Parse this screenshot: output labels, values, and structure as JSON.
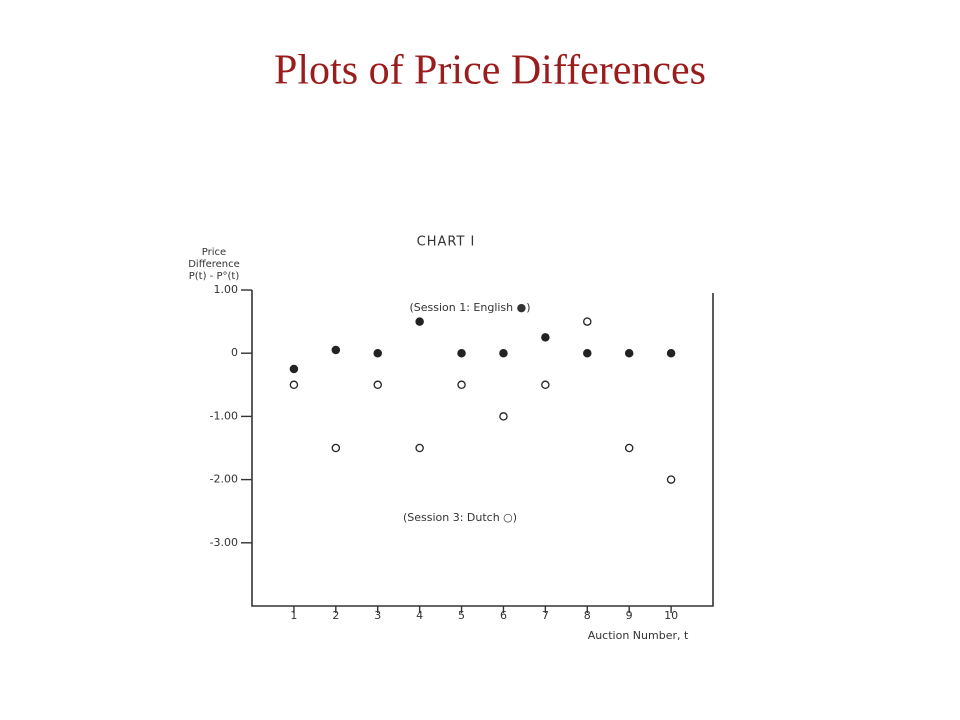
{
  "slide_title": "Plots of Price Differences",
  "chart_data": {
    "type": "scatter",
    "title": "CHART I",
    "ylabel_lines": [
      "Price",
      "Difference",
      "P(t) - P°(t)"
    ],
    "xlabel": "Auction Number, t",
    "x": [
      1,
      2,
      3,
      4,
      5,
      6,
      7,
      8,
      9,
      10
    ],
    "series": [
      {
        "name": "(Session 1: English ●)",
        "color": "#222222",
        "marker": "filled",
        "values": [
          -0.25,
          0.05,
          0,
          0.5,
          0,
          0,
          0.25,
          0,
          0,
          0
        ]
      },
      {
        "name": "(Session 3: Dutch ○)",
        "color": "#222222",
        "marker": "open",
        "values": [
          -0.5,
          -1.5,
          -0.5,
          -1.5,
          -0.5,
          -1.0,
          -0.5,
          0.5,
          -1.5,
          -2.0
        ]
      }
    ],
    "xlim": [
      0,
      11
    ],
    "ylim": [
      -4,
      1
    ],
    "xticks": [
      1,
      2,
      3,
      4,
      5,
      6,
      7,
      8,
      9,
      10
    ],
    "yticks": [
      {
        "value": 1,
        "label": "1.00"
      },
      0,
      {
        "value": -1,
        "label": "-1.00"
      },
      {
        "value": -2,
        "label": "-2.00"
      },
      {
        "value": -3,
        "label": "-3.00"
      }
    ],
    "grid": false
  }
}
